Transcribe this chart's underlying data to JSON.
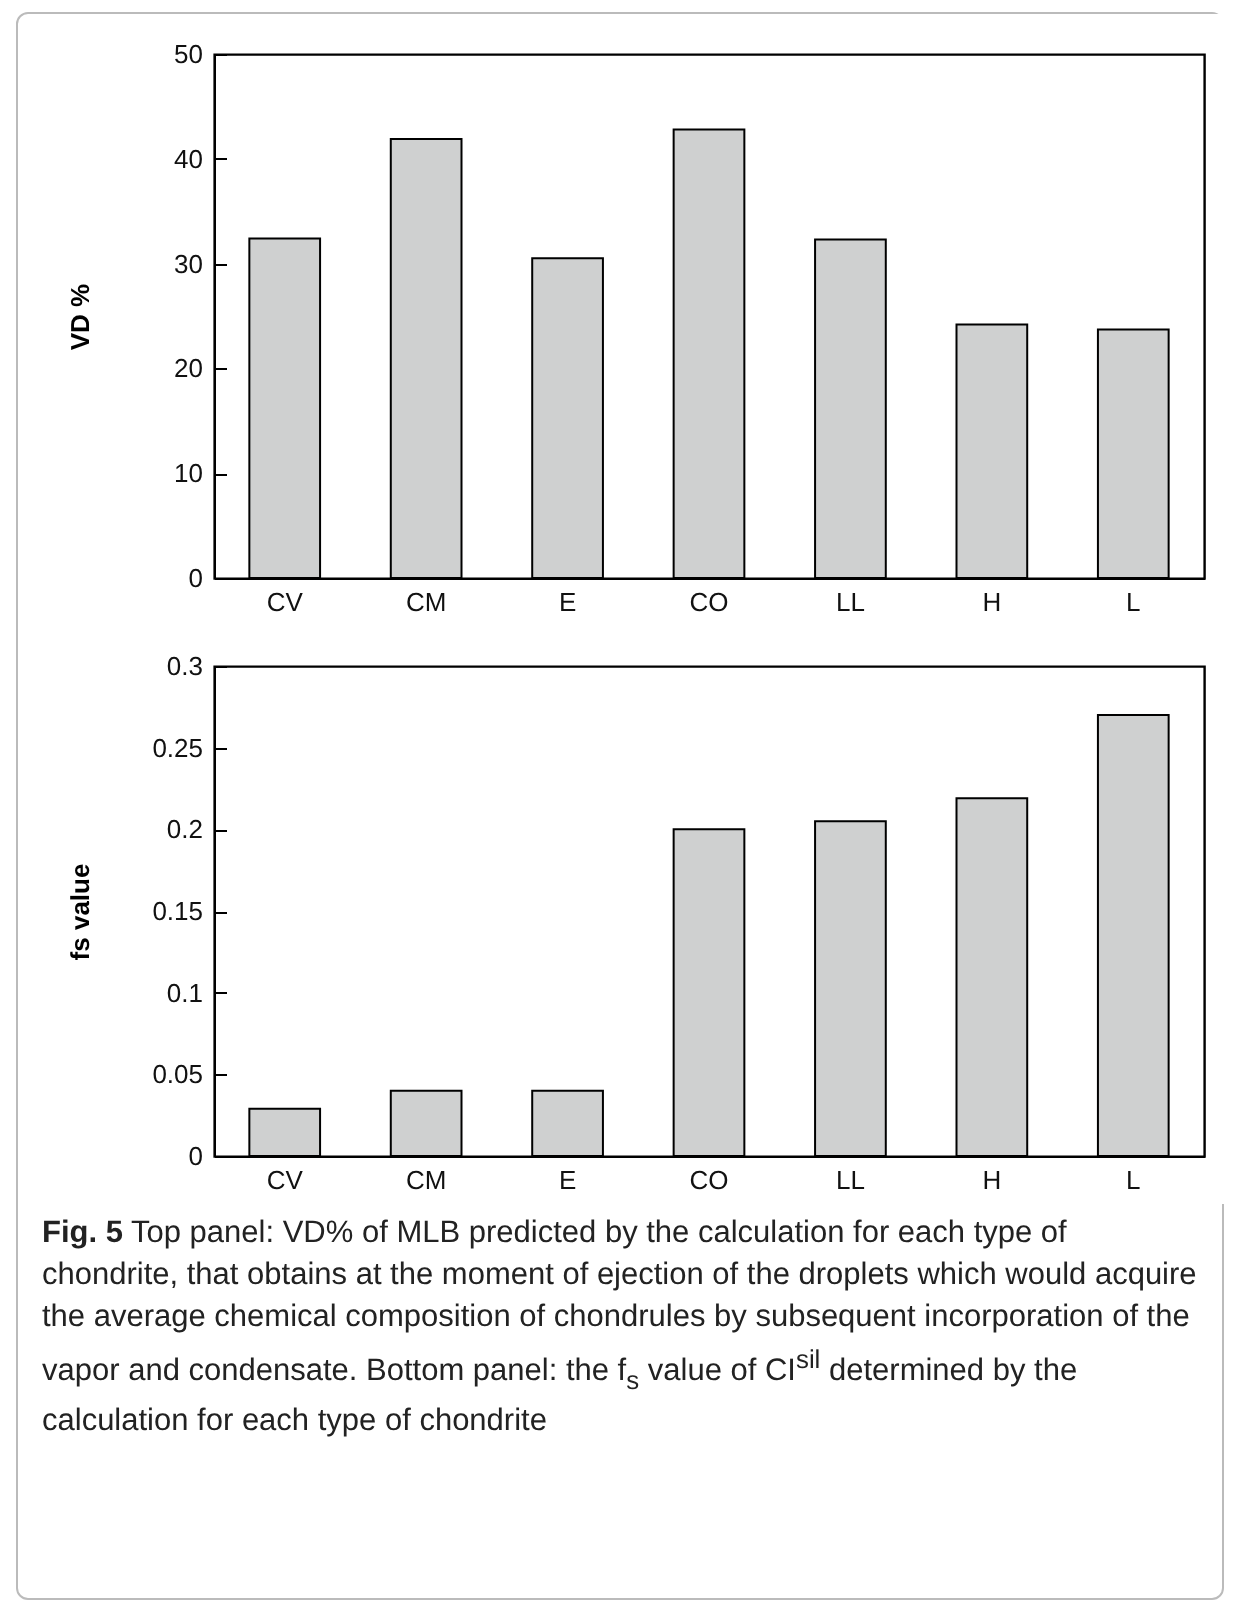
{
  "chart_data": [
    {
      "type": "bar",
      "ylabel": "VD %",
      "categories": [
        "CV",
        "CM",
        "E",
        "CO",
        "LL",
        "H",
        "L"
      ],
      "values": [
        32.4,
        41.9,
        30.5,
        42.8,
        32.3,
        24.2,
        23.7
      ],
      "color": "#cfd0d0",
      "ylim": [
        0,
        50
      ],
      "yticks": [
        0,
        10,
        20,
        30,
        40,
        50
      ],
      "grid": false
    },
    {
      "type": "bar",
      "ylabel": "fs value",
      "categories": [
        "CV",
        "CM",
        "E",
        "CO",
        "LL",
        "H",
        "L"
      ],
      "values": [
        0.029,
        0.04,
        0.04,
        0.2,
        0.205,
        0.219,
        0.27
      ],
      "color": "#cfd0d0",
      "ylim": [
        0,
        0.3
      ],
      "yticks": [
        0,
        0.05,
        0.1,
        0.15,
        0.2,
        0.25,
        0.3
      ],
      "grid": false,
      "annotations": [
        "Fig. 5 Top panel: VD% of MLB predicted by the calculation for each type of chondrite, that obtains at the moment of ejection of the droplets which would acquire the average chemical composition of chondrules by subsequent incorporation of the vapor and condensate. Bottom panel: the f$_{s}$ value of CI$^{sil}$ determined by the calculation for each type of chondrite"
      ]
    }
  ]
}
